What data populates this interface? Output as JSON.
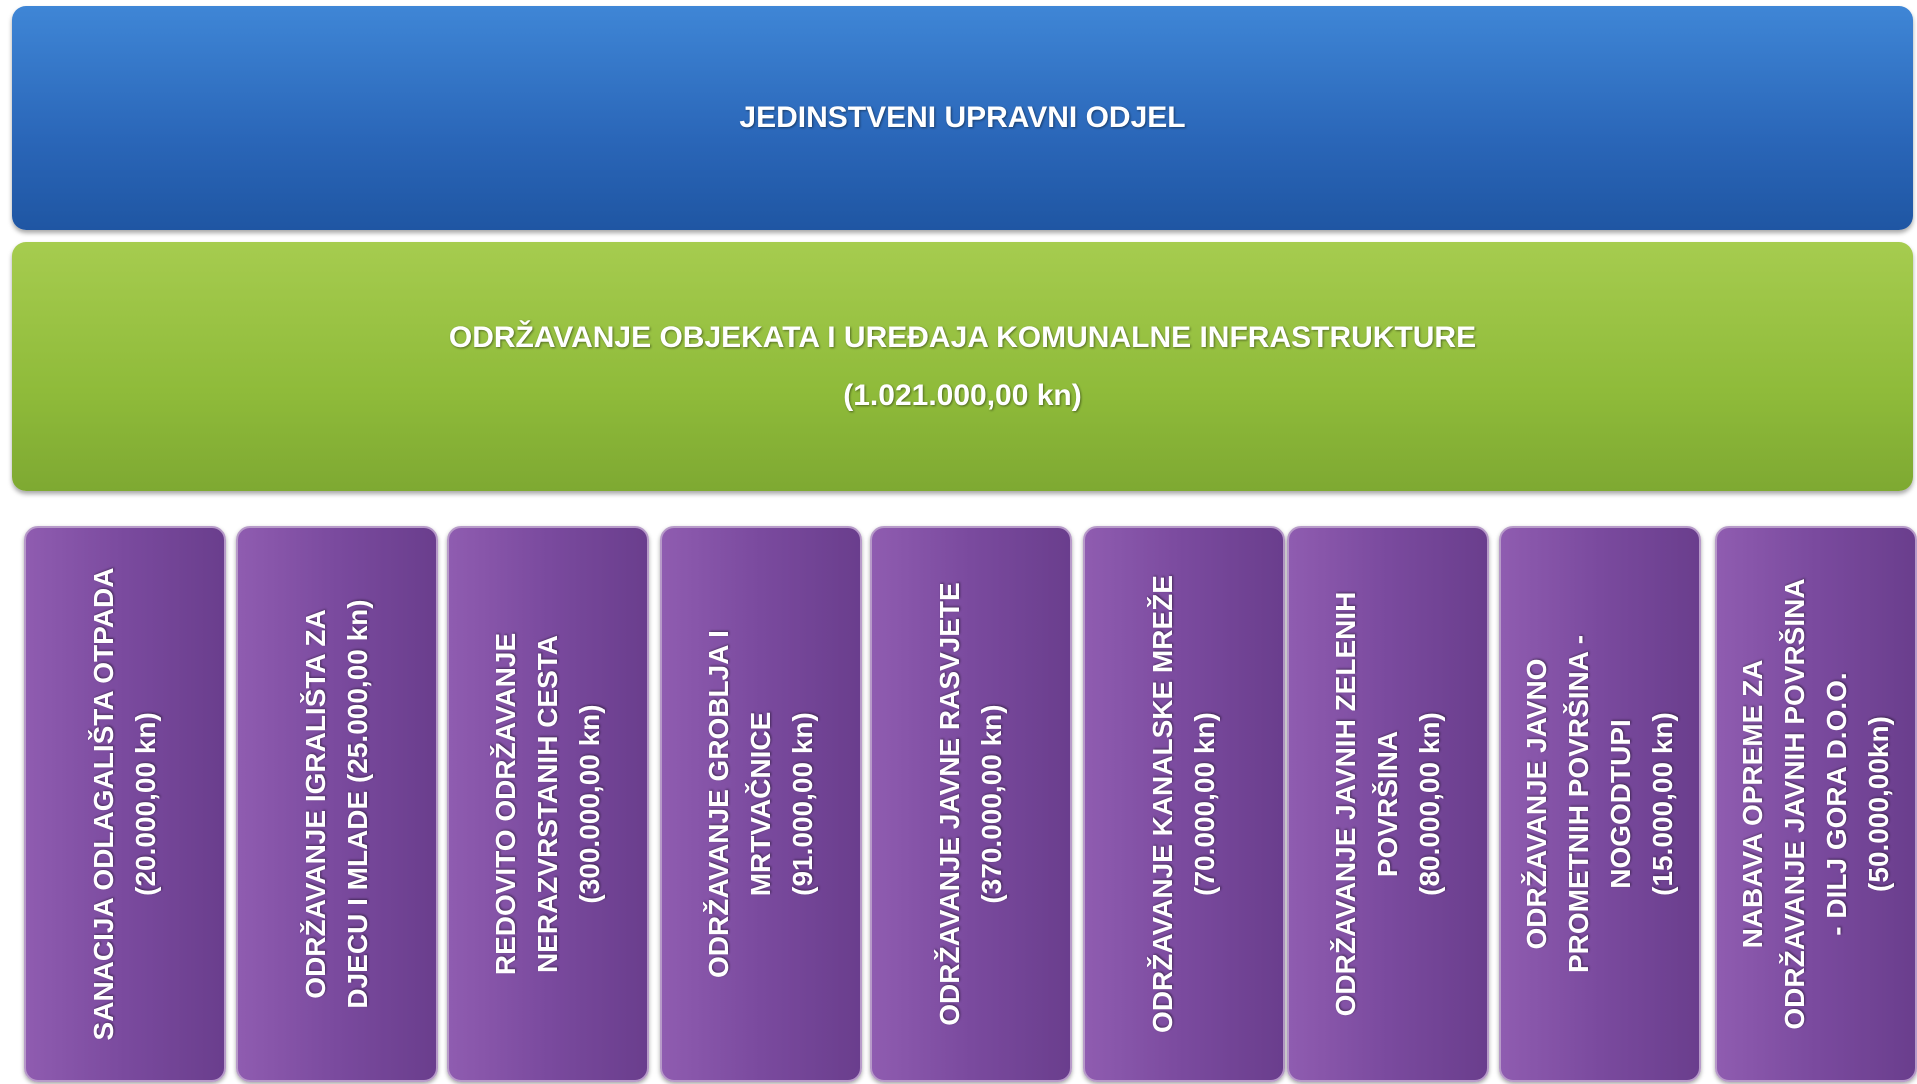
{
  "header": {
    "title": "JEDINSTVENI UPRAVNI ODJEL"
  },
  "program": {
    "lines": [
      "ODRŽAVANJE OBJEKATA I UREĐAJA KOMUNALNE INFRASTRUKTURE",
      "(1.021.000,00 kn)"
    ]
  },
  "items": [
    {
      "lines": [
        "SANACIJA ODLAGALIŠTA OTPADA",
        "(20.000,00 kn)"
      ]
    },
    {
      "lines": [
        "ODRŽAVANJE IGRALIŠTA ZA",
        "DJECU I MLADE (25.000,00 kn)"
      ]
    },
    {
      "lines": [
        "REDOVITO ODRŽAVANJE",
        "NERAZVRSTANIH CESTA",
        "(300.000,00 kn)"
      ]
    },
    {
      "lines": [
        "ODRŽAVANJE GROBLJA I",
        "MRTVAČNICE",
        "(91.000,00 kn)"
      ]
    },
    {
      "lines": [
        "ODRŽAVANJE JAVNE RASVJETE",
        "(370.000,00 kn)"
      ]
    },
    {
      "lines": [
        "ODRŽAVANJE KANALSKE MREŽE",
        "(70.000,00 kn)"
      ]
    },
    {
      "lines": [
        "ODRŽAVANJE JAVNIH ZELENIH",
        "POVRŠINA",
        "(80.000,00 kn)"
      ]
    },
    {
      "lines": [
        "ODRŽAVANJE JAVNO",
        "PROMETNIH POVRŠINA -",
        "NOGODTUPI",
        "(15.000,00 kn)"
      ]
    },
    {
      "lines": [
        "NABAVA OPREME ZA",
        "ODRŽAVANJE JAVNIH POVRŠINA",
        "- DILJ GORA D.O.O.",
        "(50.000,00kn)"
      ]
    }
  ]
}
